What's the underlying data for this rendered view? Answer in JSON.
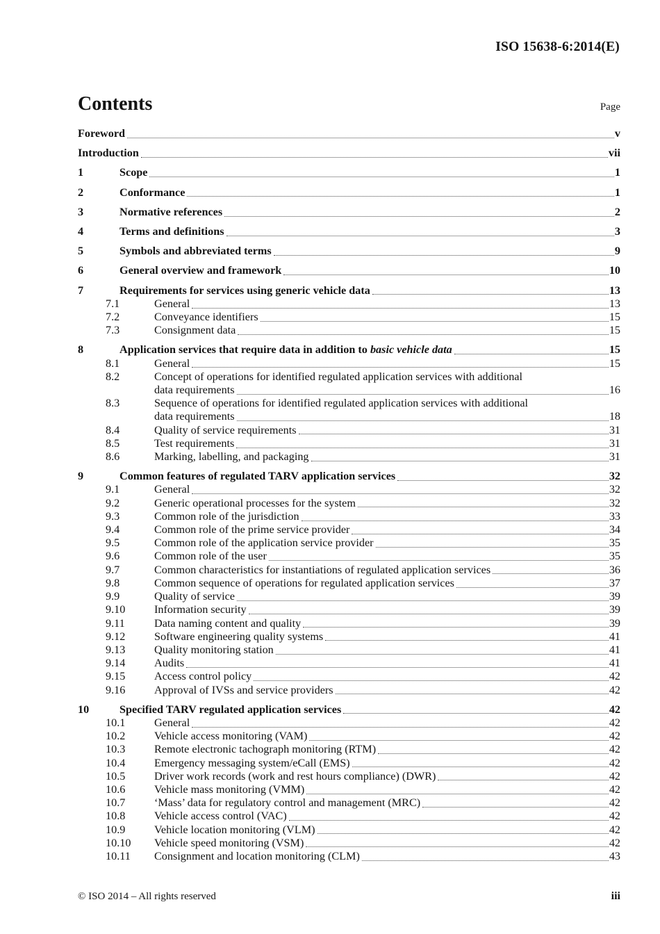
{
  "document": {
    "reference": "ISO 15638-6:2014(E)"
  },
  "contents": {
    "title": "Contents",
    "page_label": "Page",
    "entries": [
      {
        "level": "front",
        "num": "",
        "title": "Foreword",
        "page": "v"
      },
      {
        "level": "front",
        "num": "",
        "title": "Introduction",
        "page": "vii"
      },
      {
        "level": "l1",
        "num": "1",
        "title": "Scope",
        "page": "1"
      },
      {
        "level": "l1",
        "num": "2",
        "title": "Conformance",
        "page": "1"
      },
      {
        "level": "l1",
        "num": "3",
        "title": "Normative references",
        "page": "2"
      },
      {
        "level": "l1",
        "num": "4",
        "title": "Terms and definitions",
        "page": "3"
      },
      {
        "level": "l1",
        "num": "5",
        "title": "Symbols and abbreviated terms",
        "page": "9"
      },
      {
        "level": "l1",
        "num": "6",
        "title": "General overview and framework",
        "page": "10"
      },
      {
        "level": "l1",
        "num": "7",
        "title": "Requirements for services using generic vehicle data",
        "page": "13"
      },
      {
        "level": "l2",
        "num": "7.1",
        "title": "General",
        "page": "13"
      },
      {
        "level": "l2",
        "num": "7.2",
        "title": "Conveyance identifiers",
        "page": "15"
      },
      {
        "level": "l2",
        "num": "7.3",
        "title": "Consignment data",
        "page": "15"
      },
      {
        "level": "l1",
        "num": "8",
        "title": "Application services that require data in addition to ",
        "title_italic": "basic vehicle data",
        "page": "15"
      },
      {
        "level": "l2",
        "num": "8.1",
        "title": "General",
        "page": "15"
      },
      {
        "level": "l2",
        "num": "8.2",
        "title": "Concept of operations for identified regulated application services with additional",
        "title2": "data requirements",
        "page": "16"
      },
      {
        "level": "l2",
        "num": "8.3",
        "title": "Sequence of operations for identified regulated application services with additional",
        "title2": "data requirements",
        "page": "18"
      },
      {
        "level": "l2",
        "num": "8.4",
        "title": "Quality of service requirements",
        "page": "31"
      },
      {
        "level": "l2",
        "num": "8.5",
        "title": "Test requirements",
        "page": "31"
      },
      {
        "level": "l2",
        "num": "8.6",
        "title": "Marking, labelling, and packaging",
        "page": "31"
      },
      {
        "level": "l1",
        "num": "9",
        "title": "Common features of regulated TARV application services",
        "page": "32"
      },
      {
        "level": "l2",
        "num": "9.1",
        "title": "General",
        "page": "32"
      },
      {
        "level": "l2",
        "num": "9.2",
        "title": "Generic operational processes for the system",
        "page": "32"
      },
      {
        "level": "l2",
        "num": "9.3",
        "title": "Common role of the jurisdiction",
        "page": "33"
      },
      {
        "level": "l2",
        "num": "9.4",
        "title": "Common role of the prime service provider",
        "page": "34"
      },
      {
        "level": "l2",
        "num": "9.5",
        "title": "Common role of the application service provider",
        "page": "35"
      },
      {
        "level": "l2",
        "num": "9.6",
        "title": "Common role of the user",
        "page": "35"
      },
      {
        "level": "l2",
        "num": "9.7",
        "title": "Common characteristics for instantiations of regulated application services",
        "page": "36"
      },
      {
        "level": "l2",
        "num": "9.8",
        "title": "Common sequence of operations for regulated application services",
        "page": "37"
      },
      {
        "level": "l2",
        "num": "9.9",
        "title": "Quality of service",
        "page": "39"
      },
      {
        "level": "l2",
        "num": "9.10",
        "title": "Information security",
        "page": "39"
      },
      {
        "level": "l2",
        "num": "9.11",
        "title": "Data naming content and quality",
        "page": "39"
      },
      {
        "level": "l2",
        "num": "9.12",
        "title": "Software engineering quality systems",
        "page": "41"
      },
      {
        "level": "l2",
        "num": "9.13",
        "title": "Quality monitoring station",
        "page": "41"
      },
      {
        "level": "l2",
        "num": "9.14",
        "title": "Audits",
        "page": "41"
      },
      {
        "level": "l2",
        "num": "9.15",
        "title": "Access control policy",
        "page": "42"
      },
      {
        "level": "l2",
        "num": "9.16",
        "title": "Approval of IVSs and service providers",
        "page": "42"
      },
      {
        "level": "l1",
        "num": "10",
        "title": "Specified TARV regulated application services",
        "page": "42"
      },
      {
        "level": "l2",
        "num": "10.1",
        "title": "General",
        "page": "42"
      },
      {
        "level": "l2",
        "num": "10.2",
        "title": "Vehicle access monitoring (VAM)",
        "page": "42"
      },
      {
        "level": "l2",
        "num": "10.3",
        "title": "Remote electronic tachograph monitoring (RTM)",
        "page": "42"
      },
      {
        "level": "l2",
        "num": "10.4",
        "title": "Emergency messaging system/eCall (EMS)",
        "page": "42"
      },
      {
        "level": "l2",
        "num": "10.5",
        "title": "Driver work records (work and rest hours compliance) (DWR)",
        "page": "42"
      },
      {
        "level": "l2",
        "num": "10.6",
        "title": "Vehicle mass monitoring (VMM)",
        "page": "42"
      },
      {
        "level": "l2",
        "num": "10.7",
        "title": "‘Mass’ data for regulatory control and management (MRC)",
        "page": "42"
      },
      {
        "level": "l2",
        "num": "10.8",
        "title": "Vehicle access control (VAC)",
        "page": "42"
      },
      {
        "level": "l2",
        "num": "10.9",
        "title": "Vehicle location monitoring (VLM)",
        "page": "42"
      },
      {
        "level": "l2",
        "num": "10.10",
        "title": "Vehicle speed monitoring (VSM)",
        "page": "42"
      },
      {
        "level": "l2",
        "num": "10.11",
        "title": "Consignment and location monitoring (CLM)",
        "page": "43"
      }
    ]
  },
  "footer": {
    "copyright": "© ISO 2014 – All rights reserved",
    "page_number": "iii"
  }
}
